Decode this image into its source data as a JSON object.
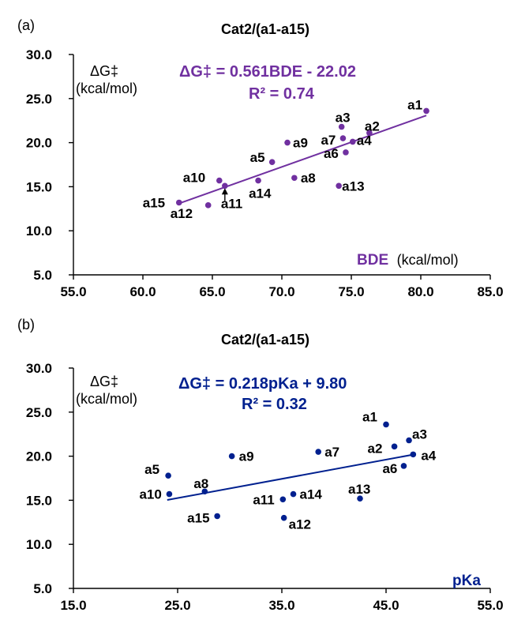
{
  "chart_data": [
    {
      "type": "scatter",
      "panel": "(a)",
      "title": "Cat2/(a1-a15)",
      "ylabel": "ΔG‡",
      "ylabel_unit": "(kcal/mol)",
      "xlabel": "BDE",
      "xlabel_unit": "(kcal/mol)",
      "xlim": [
        55.0,
        85.0
      ],
      "ylim": [
        5.0,
        30.0
      ],
      "xticks": [
        "55.0",
        "60.0",
        "65.0",
        "70.0",
        "75.0",
        "80.0",
        "85.0"
      ],
      "yticks": [
        "5.0",
        "10.0",
        "15.0",
        "20.0",
        "25.0",
        "30.0"
      ],
      "color": "#7030a0",
      "equation": "ΔG‡ = 0.561BDE - 22.02",
      "r2": "R² = 0.74",
      "fit": {
        "slope": 0.561,
        "intercept": -22.02,
        "x_range": [
          62.6,
          80.4
        ]
      },
      "points": [
        {
          "label": "a1",
          "x": 80.4,
          "y": 23.6
        },
        {
          "label": "a2",
          "x": 76.3,
          "y": 21.1
        },
        {
          "label": "a3",
          "x": 74.3,
          "y": 21.8
        },
        {
          "label": "a4",
          "x": 75.1,
          "y": 20.1
        },
        {
          "label": "a5",
          "x": 69.3,
          "y": 17.8
        },
        {
          "label": "a6",
          "x": 74.6,
          "y": 18.9
        },
        {
          "label": "a7",
          "x": 74.4,
          "y": 20.5
        },
        {
          "label": "a8",
          "x": 70.9,
          "y": 16.0
        },
        {
          "label": "a9",
          "x": 70.4,
          "y": 20.0
        },
        {
          "label": "a10",
          "x": 65.5,
          "y": 15.7
        },
        {
          "label": "a11",
          "x": 65.9,
          "y": 15.1
        },
        {
          "label": "a12",
          "x": 64.7,
          "y": 12.9
        },
        {
          "label": "a13",
          "x": 74.1,
          "y": 15.1
        },
        {
          "label": "a14",
          "x": 68.3,
          "y": 15.7
        },
        {
          "label": "a15",
          "x": 62.6,
          "y": 13.2
        }
      ]
    },
    {
      "type": "scatter",
      "panel": "(b)",
      "title": "Cat2/(a1-a15)",
      "ylabel": "ΔG‡",
      "ylabel_unit": "(kcal/mol)",
      "xlabel": "pKa",
      "xlim": [
        15.0,
        55.0
      ],
      "ylim": [
        5.0,
        30.0
      ],
      "xticks": [
        "15.0",
        "25.0",
        "35.0",
        "45.0",
        "55.0"
      ],
      "yticks": [
        "5.0",
        "10.0",
        "15.0",
        "20.0",
        "25.0",
        "30.0"
      ],
      "color": "#00208f",
      "equation": "ΔG‡ = 0.218pKa + 9.80",
      "r2": "R² = 0.32",
      "fit": {
        "slope": 0.218,
        "intercept": 9.8,
        "x_range": [
          24.0,
          47.5
        ]
      },
      "points": [
        {
          "label": "a1",
          "x": 45.0,
          "y": 23.6
        },
        {
          "label": "a2",
          "x": 45.8,
          "y": 21.1
        },
        {
          "label": "a3",
          "x": 47.2,
          "y": 21.8
        },
        {
          "label": "a4",
          "x": 47.6,
          "y": 20.2
        },
        {
          "label": "a5",
          "x": 24.1,
          "y": 17.8
        },
        {
          "label": "a6",
          "x": 46.7,
          "y": 18.9
        },
        {
          "label": "a7",
          "x": 38.5,
          "y": 20.5
        },
        {
          "label": "a8",
          "x": 27.6,
          "y": 16.0
        },
        {
          "label": "a9",
          "x": 30.2,
          "y": 20.0
        },
        {
          "label": "a10",
          "x": 24.2,
          "y": 15.7
        },
        {
          "label": "a11",
          "x": 35.1,
          "y": 15.1
        },
        {
          "label": "a12",
          "x": 35.2,
          "y": 13.0
        },
        {
          "label": "a13",
          "x": 42.5,
          "y": 15.2
        },
        {
          "label": "a14",
          "x": 36.1,
          "y": 15.7
        },
        {
          "label": "a15",
          "x": 28.8,
          "y": 13.2
        }
      ]
    }
  ]
}
